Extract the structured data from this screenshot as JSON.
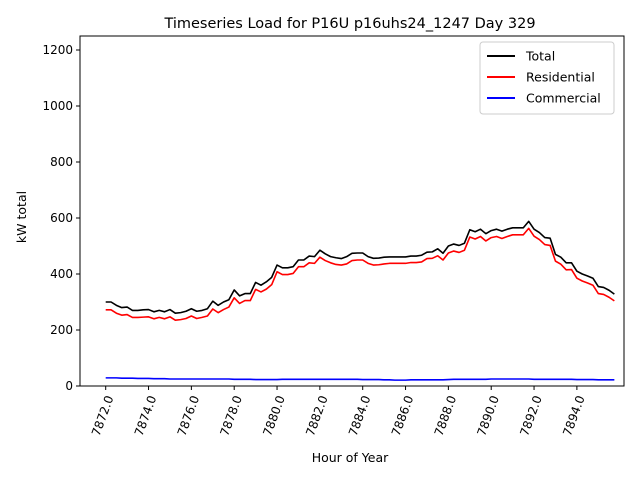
{
  "chart_data": {
    "type": "line",
    "title": "Timeseries Load for P16U p16uhs24_1247  Day 329",
    "xlabel": "Hour of Year",
    "ylabel": "kW total",
    "xlim": [
      7870.8,
      7896.2
    ],
    "ylim": [
      0,
      1250
    ],
    "xticks": [
      7872,
      7874,
      7876,
      7878,
      7880,
      7882,
      7884,
      7886,
      7888,
      7890,
      7892,
      7894
    ],
    "xtick_labels": [
      "7872.0",
      "7874.0",
      "7876.0",
      "7878.0",
      "7880.0",
      "7882.0",
      "7884.0",
      "7886.0",
      "7888.0",
      "7890.0",
      "7892.0",
      "7894.0"
    ],
    "yticks": [
      0,
      200,
      400,
      600,
      800,
      1000,
      1200
    ],
    "ytick_labels": [
      "0",
      "200",
      "400",
      "600",
      "800",
      "1000",
      "1200"
    ],
    "grid": false,
    "legend_position": "top-right",
    "x_start": 7872,
    "x_step": 0.25,
    "series": [
      {
        "name": "Total",
        "color": "#000000",
        "values": [
          300,
          300,
          288,
          280,
          282,
          270,
          270,
          272,
          273,
          265,
          270,
          265,
          273,
          260,
          262,
          267,
          276,
          267,
          270,
          276,
          303,
          288,
          300,
          308,
          343,
          322,
          330,
          330,
          370,
          360,
          372,
          388,
          432,
          422,
          422,
          426,
          450,
          450,
          464,
          462,
          485,
          472,
          462,
          458,
          455,
          462,
          474,
          475,
          475,
          462,
          456,
          457,
          460,
          461,
          461,
          461,
          461,
          464,
          464,
          467,
          478,
          479,
          490,
          474,
          500,
          507,
          502,
          510,
          558,
          551,
          560,
          544,
          555,
          560,
          553,
          560,
          565,
          565,
          565,
          588,
          560,
          548,
          530,
          528,
          470,
          460,
          440,
          440,
          410,
          400,
          393,
          385,
          355,
          352,
          342,
          328
        ]
      },
      {
        "name": "Residential",
        "color": "#ff0000",
        "values": [
          272,
          272,
          260,
          253,
          255,
          245,
          245,
          246,
          247,
          240,
          245,
          240,
          247,
          235,
          237,
          241,
          250,
          241,
          245,
          250,
          275,
          262,
          273,
          282,
          315,
          295,
          305,
          305,
          345,
          336,
          346,
          362,
          408,
          398,
          398,
          402,
          426,
          426,
          440,
          438,
          460,
          448,
          440,
          434,
          432,
          436,
          448,
          450,
          450,
          438,
          432,
          433,
          436,
          438,
          438,
          438,
          438,
          441,
          441,
          443,
          455,
          456,
          465,
          450,
          475,
          482,
          477,
          485,
          532,
          525,
          534,
          518,
          530,
          534,
          527,
          534,
          540,
          540,
          540,
          563,
          535,
          523,
          505,
          502,
          446,
          435,
          415,
          416,
          385,
          375,
          368,
          360,
          330,
          327,
          317,
          304
        ]
      },
      {
        "name": "Commercial",
        "color": "#0000ff",
        "values": [
          29,
          29,
          29,
          28,
          28,
          28,
          27,
          27,
          27,
          26,
          26,
          26,
          25,
          25,
          25,
          25,
          25,
          25,
          25,
          25,
          25,
          25,
          25,
          25,
          24,
          24,
          24,
          24,
          23,
          23,
          23,
          23,
          23,
          24,
          24,
          24,
          24,
          24,
          24,
          24,
          24,
          24,
          24,
          24,
          24,
          24,
          24,
          24,
          23,
          23,
          23,
          23,
          22,
          22,
          21,
          21,
          21,
          22,
          22,
          22,
          22,
          22,
          22,
          22,
          23,
          24,
          24,
          24,
          24,
          24,
          24,
          24,
          25,
          25,
          25,
          25,
          25,
          25,
          25,
          25,
          24,
          24,
          24,
          24,
          24,
          24,
          24,
          24,
          23,
          23,
          23,
          23,
          22,
          22,
          22,
          22
        ]
      }
    ]
  }
}
